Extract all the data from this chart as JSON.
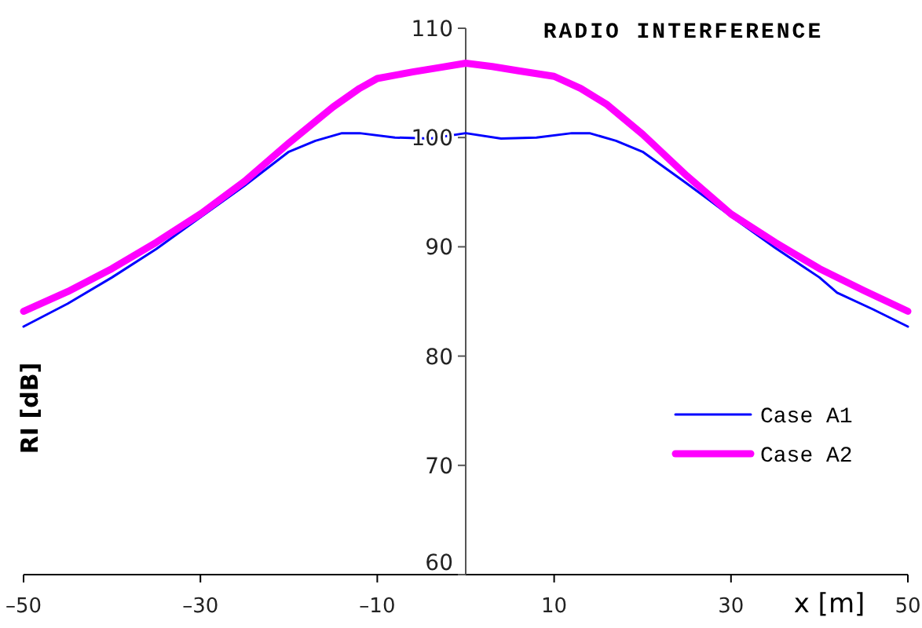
{
  "chart_data": {
    "type": "line",
    "title": "RADIO INTERFERENCE",
    "xlabel": "x [m]",
    "ylabel": "RI [dB]",
    "xlim": [
      -50,
      50
    ],
    "xticks": [
      {
        "value": -50,
        "label": "–50"
      },
      {
        "value": -30,
        "label": "–30"
      },
      {
        "value": -10,
        "label": "–10"
      },
      10,
      30,
      50
    ],
    "ylim": [
      60,
      110
    ],
    "yticks": [
      60,
      70,
      80,
      90,
      100,
      110
    ],
    "grid": false,
    "legend": "right",
    "marker": "none",
    "line_style": "solid",
    "series": [
      {
        "name": "Case A1",
        "color": "#0000ff",
        "x": [
          -50,
          -45,
          -40,
          -35,
          -30,
          -25,
          -20,
          -17,
          -14,
          -12,
          -8,
          -4,
          0,
          4,
          8,
          12,
          14,
          17,
          20,
          25,
          30,
          35,
          40,
          42,
          46,
          50
        ],
        "values": [
          82.7,
          84.8,
          87.2,
          89.8,
          92.7,
          95.6,
          98.7,
          99.7,
          100.4,
          100.4,
          100.0,
          99.9,
          100.4,
          99.9,
          100.0,
          100.4,
          100.4,
          99.7,
          98.7,
          95.8,
          92.8,
          89.9,
          87.2,
          85.8,
          84.3,
          82.7
        ]
      },
      {
        "name": "Case A2",
        "color": "#ff00ff",
        "x": [
          -50,
          -45,
          -40,
          -35,
          -30,
          -25,
          -20,
          -15,
          -12,
          -10,
          -6,
          -3,
          0,
          3,
          6,
          10,
          13,
          16,
          20,
          25,
          30,
          35,
          40,
          45,
          50
        ],
        "values": [
          84.1,
          85.9,
          88.0,
          90.4,
          93.0,
          96.0,
          99.5,
          102.8,
          104.5,
          105.4,
          106.0,
          106.4,
          106.8,
          106.5,
          106.1,
          105.6,
          104.5,
          103.0,
          100.3,
          96.5,
          93.0,
          90.4,
          88.0,
          86.0,
          84.1
        ]
      }
    ]
  }
}
